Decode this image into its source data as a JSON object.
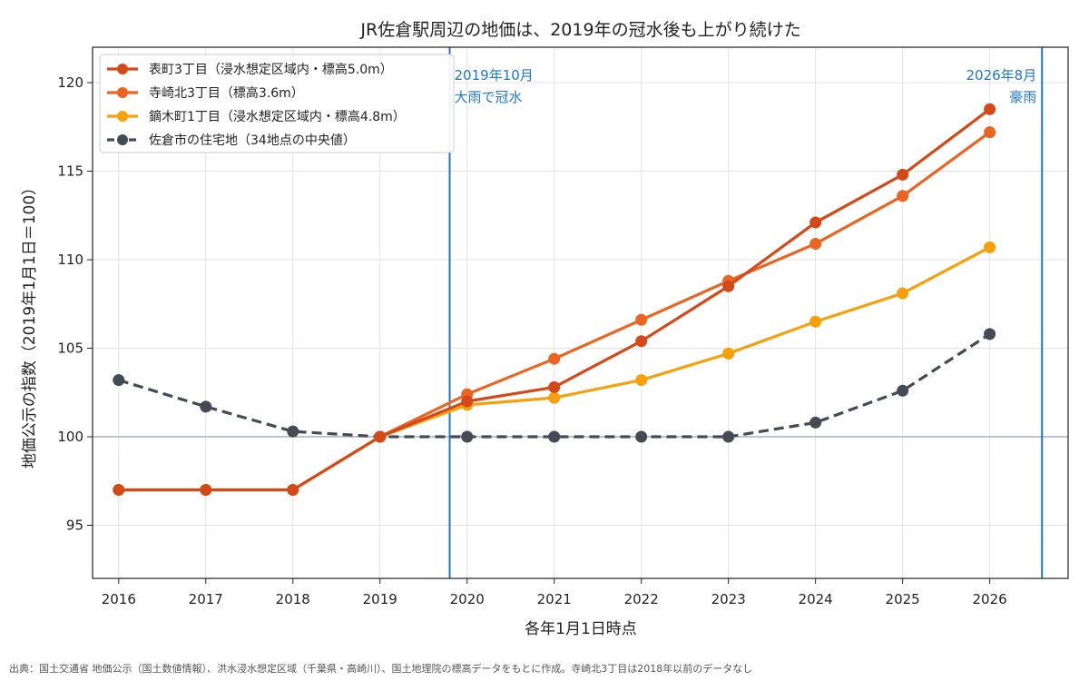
{
  "chart_data": {
    "type": "line",
    "title": "JR佐倉駅周辺の地価は、2019年の冠水後も上がり続けた",
    "xlabel": "各年1月1日時点",
    "ylabel": "地価公示の指数（2019年1月1日＝100）",
    "x": [
      2016,
      2017,
      2018,
      2019,
      2020,
      2021,
      2022,
      2023,
      2024,
      2025,
      2026
    ],
    "xlim": [
      2015.7,
      2026.9
    ],
    "ylim": [
      92.0,
      122.0
    ],
    "yticks": [
      95,
      100,
      105,
      110,
      115,
      120
    ],
    "grid": true,
    "legend_position": "top-left",
    "reference_line": {
      "y": 100,
      "color": "#aab0b8"
    },
    "events": [
      {
        "x": 2019.8,
        "label_line1": "2019年10月",
        "label_line2": "大雨で冠水",
        "color": "#1f77c8",
        "align": "left"
      },
      {
        "x": 2026.6,
        "label_line1": "2026年8月",
        "label_line2": "豪雨",
        "color": "#1f77c8",
        "align": "right"
      }
    ],
    "series": [
      {
        "name": "表町3丁目（浸水想定区域内・標高5.0m）",
        "color": "#d4491a",
        "dashed": false,
        "values": [
          97.0,
          97.0,
          97.0,
          100.0,
          102.0,
          102.8,
          105.4,
          108.5,
          112.1,
          114.8,
          118.5
        ]
      },
      {
        "name": "寺崎北3丁目（標高3.6m）",
        "color": "#ea6422",
        "dashed": false,
        "values": [
          null,
          null,
          null,
          100.0,
          102.4,
          104.4,
          106.6,
          108.8,
          110.9,
          113.6,
          117.2
        ]
      },
      {
        "name": "鏑木町1丁目（浸水想定区域内・標高4.8m）",
        "color": "#f5a00c",
        "dashed": false,
        "values": [
          97.0,
          97.0,
          97.0,
          100.0,
          101.8,
          102.2,
          103.2,
          104.7,
          106.5,
          108.1,
          110.7
        ]
      },
      {
        "name": "佐倉市の住宅地（34地点の中央値）",
        "color": "#454b55",
        "dashed": true,
        "values": [
          103.2,
          101.7,
          100.3,
          100.0,
          100.0,
          100.0,
          100.0,
          100.0,
          100.8,
          102.6,
          105.8
        ]
      }
    ]
  },
  "footnote": "出典：国土交通省 地価公示（国土数値情報）、洪水浸水想定区域（千葉県・高崎川）、国土地理院の標高データをもとに作成。寺崎北3丁目は2018年以前のデータなし"
}
